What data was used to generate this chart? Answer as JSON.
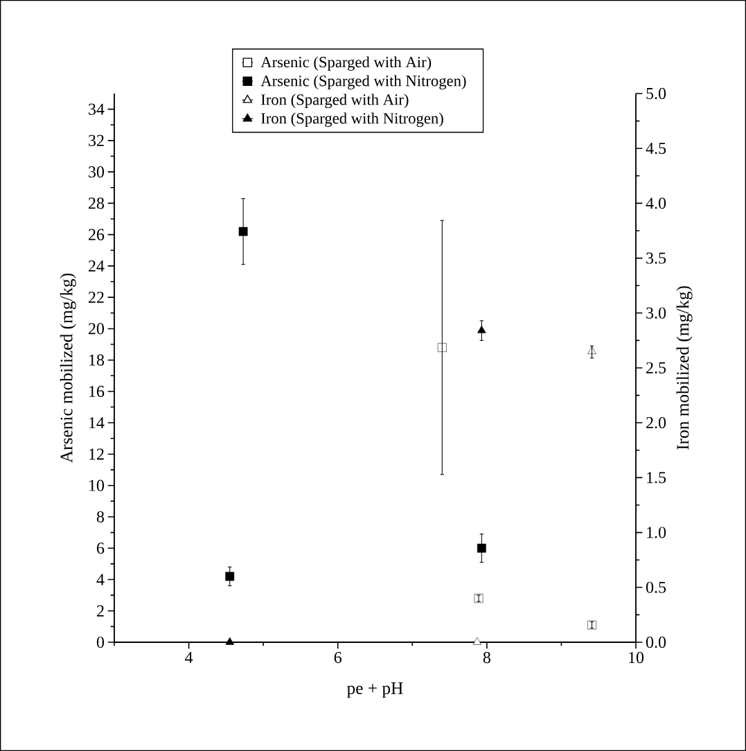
{
  "chart_data": {
    "type": "scatter",
    "xlabel": "pe + pH",
    "ylabel": "Arsenic mobilized (mg/kg)",
    "y2label": "Iron mobilized (mg/kg)",
    "xlim": [
      3,
      10
    ],
    "xticks": [
      {
        "value": 3,
        "label": null
      },
      4,
      {
        "value": 5,
        "label": null
      },
      6,
      {
        "value": 7,
        "label": null
      },
      8,
      {
        "value": 9,
        "label": null
      },
      10
    ],
    "ylim": [
      0,
      35
    ],
    "yticks": [
      0,
      {
        "value": 1,
        "label": null
      },
      2,
      {
        "value": 3,
        "label": null
      },
      4,
      {
        "value": 5,
        "label": null
      },
      6,
      {
        "value": 7,
        "label": null
      },
      8,
      {
        "value": 9,
        "label": null
      },
      10,
      {
        "value": 11,
        "label": null
      },
      12,
      {
        "value": 13,
        "label": null
      },
      14,
      {
        "value": 15,
        "label": null
      },
      16,
      {
        "value": 17,
        "label": null
      },
      18,
      {
        "value": 19,
        "label": null
      },
      20,
      {
        "value": 21,
        "label": null
      },
      22,
      {
        "value": 23,
        "label": null
      },
      24,
      {
        "value": 25,
        "label": null
      },
      26,
      {
        "value": 27,
        "label": null
      },
      28,
      {
        "value": 29,
        "label": null
      },
      30,
      {
        "value": 31,
        "label": null
      },
      32,
      {
        "value": 33,
        "label": null
      },
      34
    ],
    "y2lim": [
      0,
      5
    ],
    "y2ticks": [
      {
        "value": 0,
        "label": "0.0"
      },
      {
        "value": 0.25,
        "label": null
      },
      {
        "value": 0.5,
        "label": "0.5"
      },
      {
        "value": 0.75,
        "label": null
      },
      {
        "value": 1,
        "label": "1.0"
      },
      {
        "value": 1.25,
        "label": null
      },
      {
        "value": 1.5,
        "label": "1.5"
      },
      {
        "value": 1.75,
        "label": null
      },
      {
        "value": 2,
        "label": "2.0"
      },
      {
        "value": 2.25,
        "label": null
      },
      {
        "value": 2.5,
        "label": "2.5"
      },
      {
        "value": 2.75,
        "label": null
      },
      {
        "value": 3,
        "label": "3.0"
      },
      {
        "value": 3.25,
        "label": null
      },
      {
        "value": 3.5,
        "label": "3.5"
      },
      {
        "value": 3.75,
        "label": null
      },
      {
        "value": 4,
        "label": "4.0"
      },
      {
        "value": 4.25,
        "label": null
      },
      {
        "value": 4.5,
        "label": "4.5"
      },
      {
        "value": 4.75,
        "label": null
      },
      {
        "value": 5,
        "label": "5.0"
      }
    ],
    "legend": "top",
    "grid": false,
    "series": [
      {
        "name": "Arsenic (Sparged with Air)",
        "marker": "square",
        "color": "#ffffff",
        "x": [
          7.4,
          7.89,
          9.41
        ],
        "values": [
          18.8,
          2.8,
          1.1
        ],
        "errors": [
          [
            10.7,
            26.9
          ],
          0.2,
          0.2
        ]
      },
      {
        "name": "Arsenic (Sparged with Nitrogen)",
        "marker": "square",
        "color": "#000000",
        "x": [
          4.55,
          4.73,
          7.93
        ],
        "values": [
          4.2,
          26.2,
          6.0
        ],
        "errors": [
          [
            3.6,
            4.8
          ],
          [
            24.1,
            28.3
          ],
          [
            5.1,
            6.9
          ]
        ]
      },
      {
        "name": "Iron (Sparged with Air)",
        "marker": "triangle",
        "color": "#ffffff",
        "axis": "y2",
        "x": [
          7.87,
          9.41
        ],
        "values": [
          0,
          2.65
        ],
        "errors": [
          null,
          [
            2.59,
            2.7
          ]
        ]
      },
      {
        "name": "Iron (Sparged with Nitrogen)",
        "marker": "triangle",
        "color": "#000000",
        "axis": "y2",
        "x": [
          4.55,
          7.93
        ],
        "values": [
          0,
          2.84
        ],
        "errors": [
          null,
          [
            2.75,
            2.93
          ]
        ]
      }
    ]
  }
}
